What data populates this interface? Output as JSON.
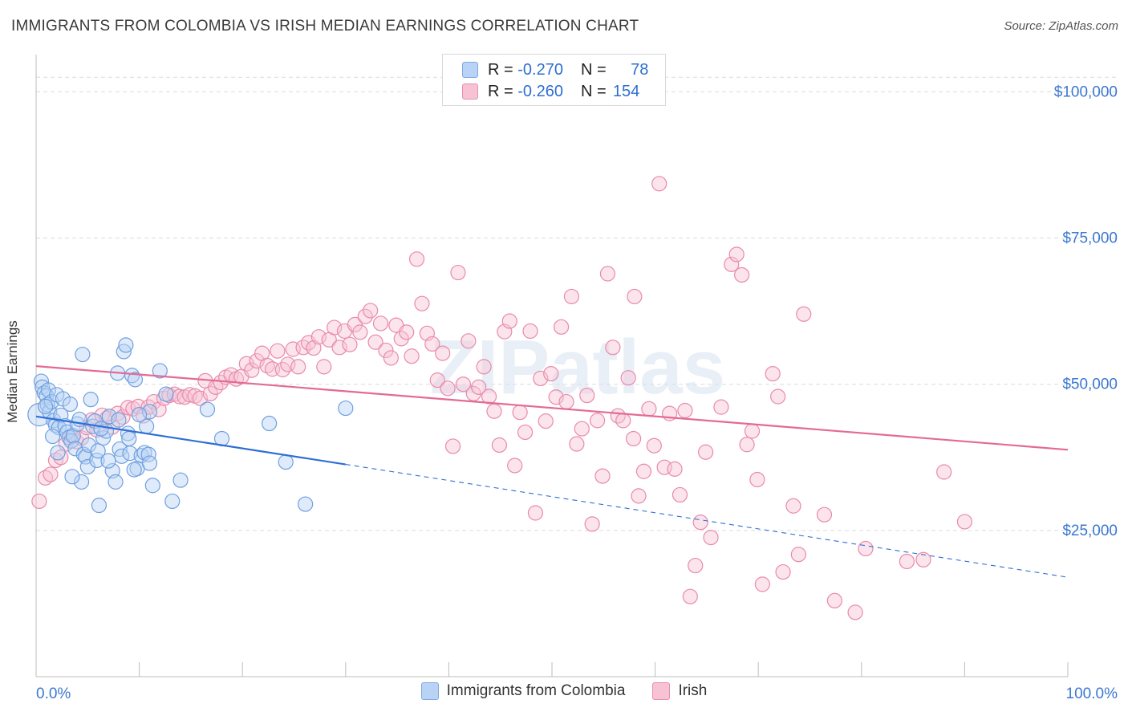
{
  "title": "IMMIGRANTS FROM COLOMBIA VS IRISH MEDIAN EARNINGS CORRELATION CHART",
  "source": "Source: ZipAtlas.com",
  "watermark": "ZIPatlas",
  "legend": {
    "r_label": "R =",
    "n_label": "N =",
    "rows": [
      {
        "r": "-0.270",
        "n": "78",
        "color": "#6fa0e0"
      },
      {
        "r": "-0.260",
        "n": "154",
        "color": "#e98aab"
      }
    ]
  },
  "bottom_legend": [
    "Immigrants from Colombia",
    "Irish"
  ],
  "chart_data": {
    "type": "scatter",
    "title": "IMMIGRANTS FROM COLOMBIA VS IRISH MEDIAN EARNINGS CORRELATION CHART",
    "xlabel": "",
    "ylabel": "Median Earnings",
    "xlim": [
      0,
      100
    ],
    "ylim": [
      0,
      105000
    ],
    "x_tick_labels": [
      "0.0%",
      "100.0%"
    ],
    "y_ticks": [
      25000,
      50000,
      75000,
      100000
    ],
    "y_tick_labels": [
      "$25,000",
      "$50,000",
      "$75,000",
      "$100,000"
    ],
    "grid": true,
    "legend_position": "top-center",
    "series": [
      {
        "name": "Immigrants from Colombia",
        "color": "#6fa0e0",
        "points": [
          [
            0.3,
            44800
          ],
          [
            0.5,
            50500
          ],
          [
            0.6,
            49500
          ],
          [
            0.8,
            48500
          ],
          [
            1.0,
            48000
          ],
          [
            1.1,
            46500
          ],
          [
            1.2,
            49000
          ],
          [
            1.3,
            45300
          ],
          [
            1.5,
            47000
          ],
          [
            1.7,
            43800
          ],
          [
            1.9,
            43000
          ],
          [
            2.0,
            48200
          ],
          [
            2.2,
            42600
          ],
          [
            2.4,
            44700
          ],
          [
            2.6,
            47500
          ],
          [
            2.8,
            42900
          ],
          [
            3.0,
            41800
          ],
          [
            3.2,
            40900
          ],
          [
            3.4,
            40300
          ],
          [
            3.6,
            41200
          ],
          [
            3.8,
            39000
          ],
          [
            4.0,
            43200
          ],
          [
            4.2,
            44000
          ],
          [
            4.4,
            33300
          ],
          [
            4.6,
            38000
          ],
          [
            4.8,
            37600
          ],
          [
            5.0,
            35900
          ],
          [
            5.3,
            47400
          ],
          [
            5.5,
            42800
          ],
          [
            5.7,
            43700
          ],
          [
            5.9,
            37000
          ],
          [
            6.1,
            29300
          ],
          [
            4.5,
            55100
          ],
          [
            6.5,
            40800
          ],
          [
            6.8,
            42000
          ],
          [
            7.1,
            44500
          ],
          [
            7.4,
            35200
          ],
          [
            7.7,
            33300
          ],
          [
            7.9,
            51900
          ],
          [
            8.1,
            38900
          ],
          [
            8.3,
            37700
          ],
          [
            8.5,
            55600
          ],
          [
            8.7,
            56700
          ],
          [
            8.9,
            41600
          ],
          [
            9.1,
            38200
          ],
          [
            9.3,
            51500
          ],
          [
            9.6,
            50800
          ],
          [
            9.8,
            35600
          ],
          [
            10.2,
            37800
          ],
          [
            10.5,
            38300
          ],
          [
            10.7,
            42800
          ],
          [
            10.9,
            38000
          ],
          [
            11.0,
            36500
          ],
          [
            11.3,
            32700
          ],
          [
            11.0,
            45300
          ],
          [
            12.0,
            52300
          ],
          [
            12.6,
            48300
          ],
          [
            13.2,
            30000
          ],
          [
            14.0,
            33600
          ],
          [
            16.6,
            45700
          ],
          [
            18.0,
            40700
          ],
          [
            22.6,
            43300
          ],
          [
            24.2,
            36700
          ],
          [
            26.1,
            29500
          ],
          [
            30.0,
            45900
          ],
          [
            0.9,
            46200
          ],
          [
            2.1,
            38300
          ],
          [
            3.5,
            34200
          ],
          [
            5.1,
            39600
          ],
          [
            6.3,
            42400
          ],
          [
            7.0,
            36900
          ],
          [
            8.0,
            43900
          ],
          [
            9.0,
            40700
          ],
          [
            10.0,
            44800
          ],
          [
            1.6,
            41100
          ],
          [
            3.3,
            46600
          ],
          [
            6.0,
            38600
          ],
          [
            9.5,
            35400
          ]
        ],
        "trend": {
          "x_start": 0,
          "y_start": 44500,
          "x_solid_end": 30,
          "y_solid_end": 36300,
          "x_end": 100,
          "y_end": 17000
        }
      },
      {
        "name": "Irish",
        "color": "#e98aab",
        "points": [
          [
            0.3,
            30000
          ],
          [
            0.9,
            34000
          ],
          [
            1.4,
            34600
          ],
          [
            1.9,
            37000
          ],
          [
            2.4,
            37500
          ],
          [
            2.9,
            39800
          ],
          [
            3.4,
            41200
          ],
          [
            3.9,
            40200
          ],
          [
            4.4,
            40800
          ],
          [
            4.9,
            42600
          ],
          [
            5.4,
            43900
          ],
          [
            5.9,
            42200
          ],
          [
            6.4,
            44700
          ],
          [
            6.9,
            44200
          ],
          [
            7.4,
            42700
          ],
          [
            7.9,
            45000
          ],
          [
            8.4,
            44400
          ],
          [
            8.9,
            46000
          ],
          [
            9.4,
            45800
          ],
          [
            9.9,
            46200
          ],
          [
            10.4,
            44600
          ],
          [
            10.9,
            46100
          ],
          [
            11.4,
            47000
          ],
          [
            11.9,
            45700
          ],
          [
            12.4,
            47600
          ],
          [
            12.9,
            48100
          ],
          [
            13.4,
            48300
          ],
          [
            13.9,
            47900
          ],
          [
            14.4,
            47800
          ],
          [
            14.9,
            48200
          ],
          [
            15.4,
            48000
          ],
          [
            15.9,
            47600
          ],
          [
            16.4,
            50600
          ],
          [
            16.9,
            48400
          ],
          [
            17.4,
            49500
          ],
          [
            17.9,
            50300
          ],
          [
            18.4,
            51200
          ],
          [
            18.9,
            51600
          ],
          [
            19.4,
            50900
          ],
          [
            19.9,
            51300
          ],
          [
            20.4,
            53500
          ],
          [
            20.9,
            52400
          ],
          [
            21.4,
            54000
          ],
          [
            21.9,
            55300
          ],
          [
            22.4,
            53200
          ],
          [
            22.9,
            52600
          ],
          [
            23.4,
            55700
          ],
          [
            23.9,
            52500
          ],
          [
            24.4,
            53400
          ],
          [
            24.9,
            56000
          ],
          [
            25.4,
            53000
          ],
          [
            25.9,
            56300
          ],
          [
            26.4,
            57100
          ],
          [
            26.9,
            56200
          ],
          [
            27.4,
            58100
          ],
          [
            27.9,
            53000
          ],
          [
            28.4,
            57600
          ],
          [
            28.9,
            59700
          ],
          [
            29.4,
            56300
          ],
          [
            29.9,
            59100
          ],
          [
            30.4,
            56800
          ],
          [
            30.9,
            60200
          ],
          [
            31.4,
            58900
          ],
          [
            31.9,
            61600
          ],
          [
            32.4,
            62600
          ],
          [
            32.9,
            57200
          ],
          [
            33.4,
            60400
          ],
          [
            33.9,
            55800
          ],
          [
            34.4,
            54500
          ],
          [
            34.9,
            60100
          ],
          [
            35.4,
            57800
          ],
          [
            35.9,
            58900
          ],
          [
            36.4,
            54800
          ],
          [
            36.9,
            71400
          ],
          [
            37.4,
            63800
          ],
          [
            37.9,
            58700
          ],
          [
            38.4,
            56900
          ],
          [
            38.9,
            50700
          ],
          [
            39.4,
            55300
          ],
          [
            39.9,
            49300
          ],
          [
            40.4,
            39400
          ],
          [
            40.9,
            69100
          ],
          [
            41.4,
            50000
          ],
          [
            41.9,
            57400
          ],
          [
            42.4,
            48400
          ],
          [
            42.9,
            49500
          ],
          [
            43.4,
            53000
          ],
          [
            43.9,
            47900
          ],
          [
            44.4,
            45400
          ],
          [
            44.9,
            39600
          ],
          [
            45.4,
            59000
          ],
          [
            45.9,
            60800
          ],
          [
            46.4,
            36100
          ],
          [
            46.9,
            45200
          ],
          [
            47.4,
            41800
          ],
          [
            47.9,
            59100
          ],
          [
            48.4,
            28000
          ],
          [
            48.9,
            51000
          ],
          [
            49.4,
            43700
          ],
          [
            49.9,
            51800
          ],
          [
            50.4,
            47800
          ],
          [
            50.9,
            59800
          ],
          [
            51.4,
            47000
          ],
          [
            51.9,
            65000
          ],
          [
            52.4,
            39800
          ],
          [
            52.9,
            42400
          ],
          [
            53.4,
            48100
          ],
          [
            53.9,
            26100
          ],
          [
            54.4,
            43800
          ],
          [
            54.9,
            34300
          ],
          [
            55.4,
            68900
          ],
          [
            55.9,
            56300
          ],
          [
            56.4,
            44600
          ],
          [
            56.9,
            43800
          ],
          [
            57.4,
            51100
          ],
          [
            57.9,
            40700
          ],
          [
            58.4,
            30900
          ],
          [
            58.9,
            35100
          ],
          [
            59.4,
            45800
          ],
          [
            59.9,
            39500
          ],
          [
            60.4,
            84300
          ],
          [
            60.9,
            35800
          ],
          [
            61.4,
            45000
          ],
          [
            61.9,
            35500
          ],
          [
            62.4,
            31100
          ],
          [
            62.9,
            45500
          ],
          [
            63.4,
            13700
          ],
          [
            63.9,
            19000
          ],
          [
            64.4,
            26400
          ],
          [
            64.9,
            38400
          ],
          [
            65.4,
            23800
          ],
          [
            66.4,
            46100
          ],
          [
            67.4,
            70500
          ],
          [
            67.9,
            72200
          ],
          [
            68.4,
            68700
          ],
          [
            68.9,
            39700
          ],
          [
            69.4,
            42000
          ],
          [
            69.9,
            33700
          ],
          [
            70.4,
            15800
          ],
          [
            71.4,
            51800
          ],
          [
            71.9,
            47900
          ],
          [
            72.4,
            17900
          ],
          [
            73.4,
            29200
          ],
          [
            73.9,
            20900
          ],
          [
            74.4,
            62000
          ],
          [
            76.4,
            27700
          ],
          [
            77.4,
            13000
          ],
          [
            79.4,
            11000
          ],
          [
            80.4,
            21900
          ],
          [
            84.4,
            19700
          ],
          [
            58.0,
            65000
          ],
          [
            86.0,
            20000
          ],
          [
            88.0,
            35000
          ],
          [
            90.0,
            26500
          ]
        ],
        "trend": {
          "x_start": 0,
          "y_start": 53100,
          "x_end": 100,
          "y_end": 38800
        }
      }
    ]
  }
}
